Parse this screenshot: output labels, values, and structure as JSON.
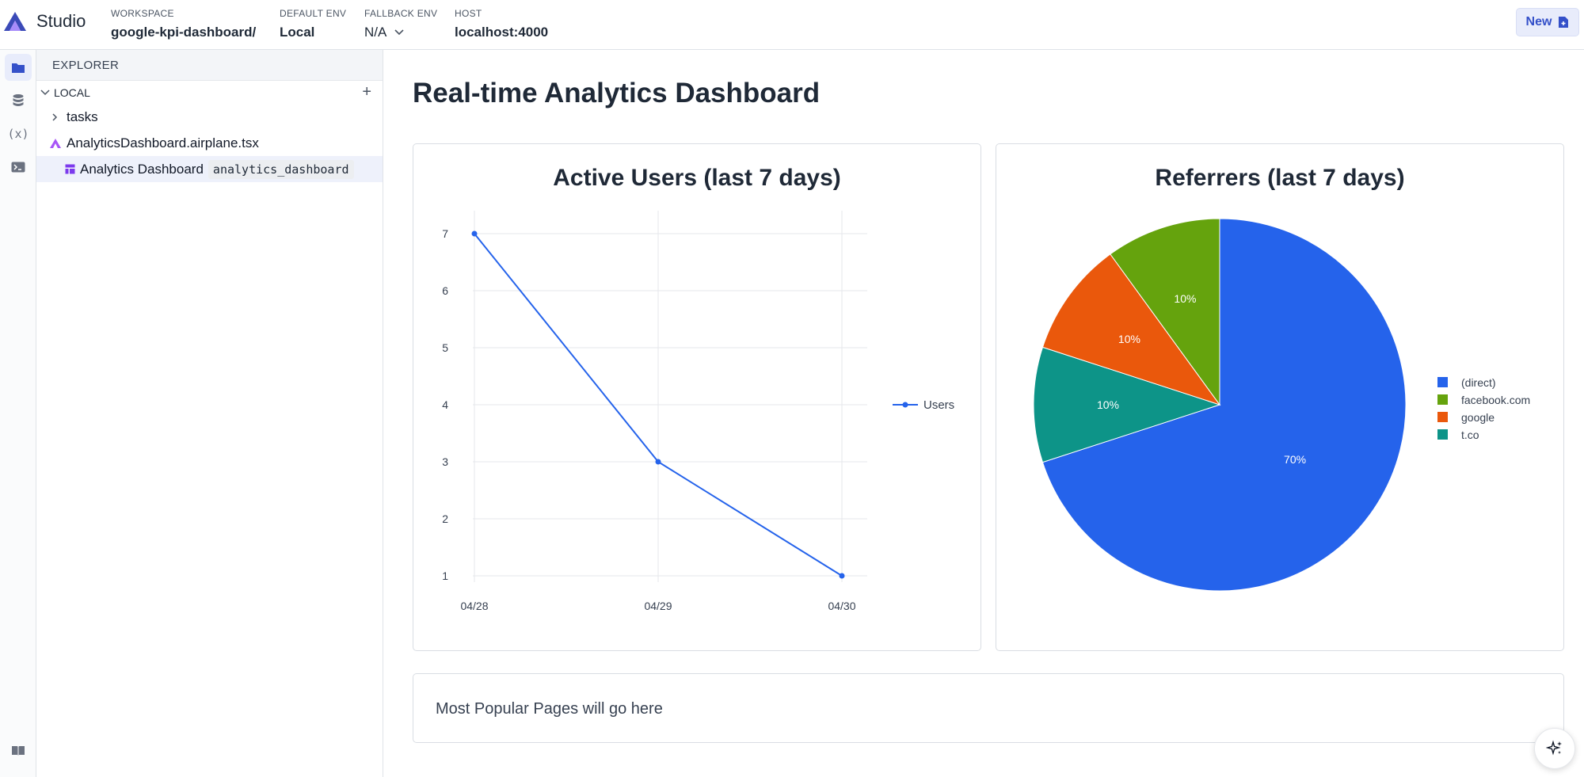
{
  "app": {
    "brand": "Studio",
    "new_button": "New"
  },
  "workspace": {
    "label": "WORKSPACE",
    "value": "google-kpi-dashboard/"
  },
  "default_env": {
    "label": "DEFAULT ENV",
    "value": "Local"
  },
  "fallback_env": {
    "label": "FALLBACK ENV",
    "value": "N/A"
  },
  "host": {
    "label": "HOST",
    "value": "localhost:4000"
  },
  "explorer": {
    "header": "EXPLORER",
    "section": "LOCAL",
    "items": [
      {
        "label": "tasks",
        "kind": "folder"
      },
      {
        "label": "AnalyticsDashboard.airplane.tsx",
        "kind": "file"
      },
      {
        "label": "Analytics Dashboard",
        "slug": "analytics_dashboard",
        "kind": "view",
        "selected": true
      }
    ]
  },
  "main": {
    "title": "Real-time Analytics Dashboard",
    "popular_placeholder": "Most Popular Pages will go here"
  },
  "colors": {
    "accent": "#3450c9",
    "line": "#2563eb",
    "direct": "#2563eb",
    "facebook": "#65a30d",
    "google": "#ea580c",
    "tco": "#0d9488"
  },
  "chart_data": [
    {
      "type": "line",
      "title": "Active Users (last 7 days)",
      "x": [
        "04/28",
        "04/29",
        "04/30"
      ],
      "series": [
        {
          "name": "Users",
          "values": [
            7,
            3,
            1
          ]
        }
      ],
      "y_ticks": [
        1,
        2,
        3,
        4,
        5,
        6,
        7
      ],
      "ylim": [
        1,
        7
      ],
      "grid": true,
      "legend": "right"
    },
    {
      "type": "pie",
      "title": "Referrers (last 7 days)",
      "labels": [
        "(direct)",
        "facebook.com",
        "google",
        "t.co"
      ],
      "values": [
        70,
        10,
        10,
        10
      ],
      "value_labels": [
        "70%",
        "10%",
        "10%",
        "10%"
      ],
      "legend": "right"
    }
  ]
}
